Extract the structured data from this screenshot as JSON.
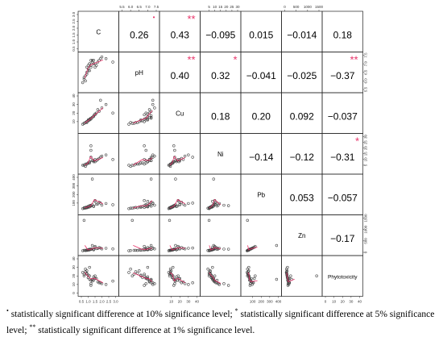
{
  "chart_data": {
    "type": "scatter",
    "variables": [
      "C",
      "pH",
      "Cu",
      "Ni",
      "Pb",
      "Zn",
      "Phytotoxicity"
    ],
    "ranges": [
      [
        0.5,
        3.0
      ],
      [
        5.5,
        7.5
      ],
      [
        0,
        40
      ],
      [
        0,
        30
      ],
      [
        0,
        400
      ],
      [
        0,
        1500
      ],
      [
        0,
        40
      ]
    ],
    "ticks": [
      [
        "0.5",
        "1.0",
        "1.5",
        "2.0",
        "2.5",
        "3.0"
      ],
      [
        "5.5",
        "6.0",
        "6.5",
        "7.0",
        "7.5"
      ],
      [
        "10",
        "20",
        "30",
        "40"
      ],
      [
        "5",
        "10",
        "15",
        "20",
        "25",
        "30"
      ],
      [
        "100",
        "200",
        "300",
        "400"
      ],
      [
        "0",
        "500",
        "1000",
        "1500"
      ],
      [
        "0",
        "10",
        "20",
        "30",
        "40"
      ]
    ],
    "correlations": [
      {
        "row": 0,
        "col": 1,
        "value": "0.26",
        "sig": "*"
      },
      {
        "row": 0,
        "col": 2,
        "value": "0.43",
        "sig": "**"
      },
      {
        "row": 0,
        "col": 3,
        "value": "−0.095",
        "sig": ""
      },
      {
        "row": 0,
        "col": 4,
        "value": "0.015",
        "sig": ""
      },
      {
        "row": 0,
        "col": 5,
        "value": "−0.014",
        "sig": ""
      },
      {
        "row": 0,
        "col": 6,
        "value": "0.18",
        "sig": ""
      },
      {
        "row": 1,
        "col": 2,
        "value": "0.40",
        "sig": "**"
      },
      {
        "row": 1,
        "col": 3,
        "value": "0.32",
        "sig": "*"
      },
      {
        "row": 1,
        "col": 4,
        "value": "−0.041",
        "sig": ""
      },
      {
        "row": 1,
        "col": 5,
        "value": "−0.025",
        "sig": ""
      },
      {
        "row": 1,
        "col": 6,
        "value": "−0.37",
        "sig": "**"
      },
      {
        "row": 2,
        "col": 3,
        "value": "0.18",
        "sig": ""
      },
      {
        "row": 2,
        "col": 4,
        "value": "0.20",
        "sig": ""
      },
      {
        "row": 2,
        "col": 5,
        "value": "0.092",
        "sig": ""
      },
      {
        "row": 2,
        "col": 6,
        "value": "−0.037",
        "sig": ""
      },
      {
        "row": 3,
        "col": 4,
        "value": "−0.14",
        "sig": ""
      },
      {
        "row": 3,
        "col": 5,
        "value": "−0.12",
        "sig": ""
      },
      {
        "row": 3,
        "col": 6,
        "value": "−0.31",
        "sig": "*"
      },
      {
        "row": 4,
        "col": 5,
        "value": "0.053",
        "sig": ""
      },
      {
        "row": 4,
        "col": 6,
        "value": "−0.057",
        "sig": ""
      },
      {
        "row": 5,
        "col": 6,
        "value": "−0.17",
        "sig": ""
      }
    ],
    "series": [
      {
        "C": 1.0,
        "pH": 6.9,
        "Cu": 12,
        "Ni": 7,
        "Pb": 60,
        "Zn": 120,
        "Phytotoxicity": 18
      },
      {
        "C": 1.3,
        "pH": 7.1,
        "Cu": 15,
        "Ni": 9,
        "Pb": 80,
        "Zn": 150,
        "Phytotoxicity": 14
      },
      {
        "C": 0.7,
        "pH": 6.2,
        "Cu": 8,
        "Ni": 5,
        "Pb": 45,
        "Zn": 90,
        "Phytotoxicity": 22
      },
      {
        "C": 1.8,
        "pH": 7.2,
        "Cu": 22,
        "Ni": 11,
        "Pb": 110,
        "Zn": 210,
        "Phytotoxicity": 12
      },
      {
        "C": 0.9,
        "pH": 6.5,
        "Cu": 10,
        "Ni": 6,
        "Pb": 55,
        "Zn": 100,
        "Phytotoxicity": 26
      },
      {
        "C": 1.1,
        "pH": 7.0,
        "Cu": 13,
        "Ni": 8,
        "Pb": 70,
        "Zn": 140,
        "Phytotoxicity": 16
      },
      {
        "C": 2.3,
        "pH": 7.3,
        "Cu": 30,
        "Ni": 14,
        "Pb": 95,
        "Zn": 180,
        "Phytotoxicity": 10
      },
      {
        "C": 1.5,
        "pH": 6.8,
        "Cu": 18,
        "Ni": 10,
        "Pb": 130,
        "Zn": 260,
        "Phytotoxicity": 20
      },
      {
        "C": 0.8,
        "pH": 6.0,
        "Cu": 9,
        "Ni": 4,
        "Pb": 40,
        "Zn": 80,
        "Phytotoxicity": 28
      },
      {
        "C": 1.2,
        "pH": 7.2,
        "Cu": 14,
        "Ni": 12,
        "Pb": 65,
        "Zn": 130,
        "Phytotoxicity": 15
      },
      {
        "C": 1.6,
        "pH": 6.9,
        "Cu": 20,
        "Ni": 9,
        "Pb": 85,
        "Zn": 160,
        "Phytotoxicity": 17
      },
      {
        "C": 0.6,
        "pH": 5.9,
        "Cu": 7,
        "Ni": 5,
        "Pb": 35,
        "Zn": 70,
        "Phytotoxicity": 24
      },
      {
        "C": 2.0,
        "pH": 7.4,
        "Cu": 26,
        "Ni": 13,
        "Pb": 75,
        "Zn": 150,
        "Phytotoxicity": 11
      },
      {
        "C": 1.4,
        "pH": 7.0,
        "Cu": 16,
        "Ni": 8,
        "Pb": 60,
        "Zn": 110,
        "Phytotoxicity": 19
      },
      {
        "C": 1.0,
        "pH": 6.6,
        "Cu": 11,
        "Ni": 7,
        "Pb": 50,
        "Zn": 95,
        "Phytotoxicity": 21
      },
      {
        "C": 1.7,
        "pH": 7.1,
        "Cu": 24,
        "Ni": 10,
        "Pb": 90,
        "Zn": 170,
        "Phytotoxicity": 13
      },
      {
        "C": 0.9,
        "pH": 6.4,
        "Cu": 9,
        "Ni": 6,
        "Pb": 45,
        "Zn": 85,
        "Phytotoxicity": 23
      },
      {
        "C": 1.2,
        "pH": 6.8,
        "Cu": 13,
        "Ni": 22,
        "Pb": 70,
        "Zn": 140,
        "Phytotoxicity": 9
      },
      {
        "C": 1.3,
        "pH": 7.2,
        "Cu": 15,
        "Ni": 9,
        "Pb": 380,
        "Zn": 300,
        "Phytotoxicity": 16
      },
      {
        "C": 0.7,
        "pH": 6.1,
        "Cu": 8,
        "Ni": 5,
        "Pb": 40,
        "Zn": 1400,
        "Phytotoxicity": 20
      },
      {
        "C": 1.1,
        "pH": 7.0,
        "Cu": 12,
        "Ni": 8,
        "Pb": 55,
        "Zn": 120,
        "Phytotoxicity": 30
      },
      {
        "C": 1.9,
        "pH": 7.3,
        "Cu": 35,
        "Ni": 12,
        "Pb": 100,
        "Zn": 190,
        "Phytotoxicity": 12
      },
      {
        "C": 1.0,
        "pH": 6.7,
        "Cu": 11,
        "Ni": 7,
        "Pb": 60,
        "Zn": 110,
        "Phytotoxicity": 18
      },
      {
        "C": 2.8,
        "pH": 7.1,
        "Cu": 20,
        "Ni": 10,
        "Pb": 80,
        "Zn": 150,
        "Phytotoxicity": 14
      },
      {
        "C": 1.4,
        "pH": 7.2,
        "Cu": 17,
        "Ni": 9,
        "Pb": 65,
        "Zn": 130,
        "Phytotoxicity": 15
      },
      {
        "C": 0.8,
        "pH": 6.3,
        "Cu": 9,
        "Ni": 6,
        "Pb": 50,
        "Zn": 90,
        "Phytotoxicity": 25
      },
      {
        "C": 1.2,
        "pH": 6.9,
        "Cu": 14,
        "Ni": 18,
        "Pb": 75,
        "Zn": 145,
        "Phytotoxicity": 11
      },
      {
        "C": 1.5,
        "pH": 7.0,
        "Cu": 19,
        "Ni": 8,
        "Pb": 120,
        "Zn": 220,
        "Phytotoxicity": 17
      },
      {
        "C": 1.1,
        "pH": 6.6,
        "Cu": 12,
        "Ni": 7,
        "Pb": 58,
        "Zn": 105,
        "Phytotoxicity": 20
      },
      {
        "C": 0.9,
        "pH": 6.8,
        "Cu": 10,
        "Ni": 6,
        "Pb": 48,
        "Zn": 98,
        "Phytotoxicity": 22
      }
    ],
    "caption": [
      {
        "sup": "•",
        "text": " statistically significant difference at 10% significance level; "
      },
      {
        "sup": "*",
        "text": " statistically significant difference at 5% significance level; "
      },
      {
        "sup": "**",
        "text": " statistically significant difference at 1% significance level."
      }
    ],
    "colors": {
      "sig": "#e8336a",
      "smooth": "#e8336a",
      "points": "#444444",
      "frame": "#222222"
    }
  }
}
